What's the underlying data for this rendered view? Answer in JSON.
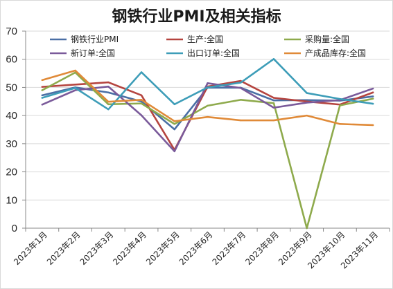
{
  "chart_data": {
    "type": "line",
    "title": "钢铁行业PMI及相关指标",
    "xlabel": "",
    "ylabel": "",
    "ylim": [
      0,
      70
    ],
    "yticks": [
      0,
      10,
      20,
      30,
      40,
      50,
      60,
      70
    ],
    "grid": true,
    "legend": "top",
    "categories": [
      "2023年1月",
      "2023年2月",
      "2023年3月",
      "2023年4月",
      "2023年5月",
      "2023年6月",
      "2023年7月",
      "2023年8月",
      "2023年9月",
      "2023年10月",
      "2023年11月"
    ],
    "series": [
      {
        "name": "钢铁行业PMI",
        "color": "#4a6fa5",
        "values": [
          47.2,
          50.0,
          48.2,
          45.0,
          35.1,
          49.9,
          49.9,
          45.4,
          45.5,
          45.3,
          46.8
        ]
      },
      {
        "name": "生产:全国",
        "color": "#b5443f",
        "values": [
          50.2,
          51.0,
          51.8,
          47.2,
          27.8,
          50.3,
          52.3,
          46.3,
          45.0,
          43.9,
          48.2
        ]
      },
      {
        "name": "采购量:全国",
        "color": "#8eaa4c",
        "values": [
          49.0,
          55.3,
          44.0,
          44.3,
          37.0,
          43.5,
          45.6,
          44.4,
          0.0,
          43.6,
          46.0
        ]
      },
      {
        "name": "新订单:全国",
        "color": "#7a5a9a",
        "values": [
          43.9,
          49.0,
          50.3,
          40.1,
          27.3,
          51.5,
          49.8,
          42.8,
          44.6,
          45.5,
          49.6
        ]
      },
      {
        "name": "出口订单:全国",
        "color": "#3d9db8",
        "values": [
          46.3,
          49.8,
          42.2,
          55.4,
          44.0,
          50.0,
          51.7,
          60.1,
          48.0,
          45.9,
          44.2
        ]
      },
      {
        "name": "产成品库存:全国",
        "color": "#e08a38",
        "values": [
          52.6,
          56.0,
          44.9,
          45.6,
          38.0,
          39.5,
          38.3,
          38.3,
          40.0,
          37.0,
          36.6
        ]
      }
    ]
  }
}
